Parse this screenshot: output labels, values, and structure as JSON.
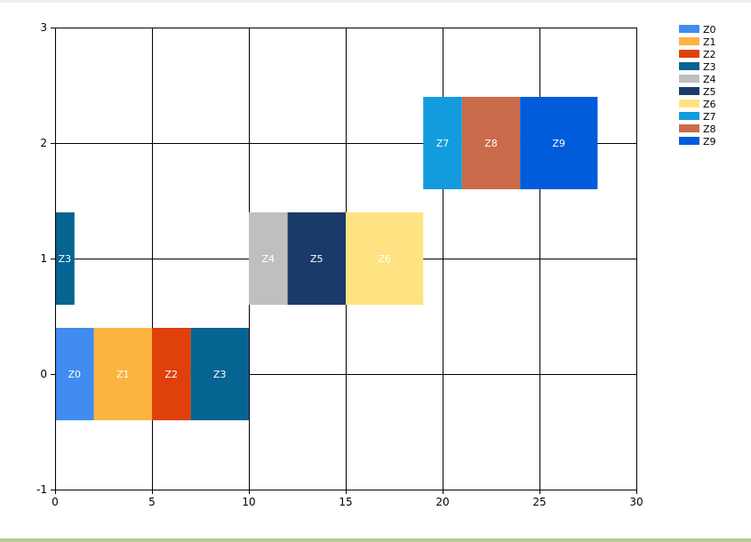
{
  "chart_data": {
    "type": "bar",
    "orientation": "horizontal-floating",
    "xlim": [
      0,
      30
    ],
    "ylim": [
      -1,
      3
    ],
    "x_ticks": [
      0,
      5,
      10,
      15,
      20,
      25,
      30
    ],
    "y_ticks": [
      -1,
      0,
      1,
      2,
      3
    ],
    "grid": true,
    "legend_position": "top-right",
    "bar_height": 0.8,
    "series": [
      {
        "name": "Z0",
        "color": "#418CF0",
        "segments": [
          {
            "y": 0,
            "start": 0,
            "end": 2
          }
        ]
      },
      {
        "name": "Z1",
        "color": "#FCB441",
        "segments": [
          {
            "y": 0,
            "start": 2,
            "end": 5
          }
        ]
      },
      {
        "name": "Z2",
        "color": "#E0400A",
        "segments": [
          {
            "y": 0,
            "start": 5,
            "end": 7
          }
        ]
      },
      {
        "name": "Z3",
        "color": "#056492",
        "segments": [
          {
            "y": 0,
            "start": 7,
            "end": 10
          },
          {
            "y": 1,
            "start": 0,
            "end": 1
          }
        ]
      },
      {
        "name": "Z4",
        "color": "#BFBFBF",
        "segments": [
          {
            "y": 1,
            "start": 10,
            "end": 12
          }
        ]
      },
      {
        "name": "Z5",
        "color": "#1A3B69",
        "segments": [
          {
            "y": 1,
            "start": 12,
            "end": 15
          }
        ]
      },
      {
        "name": "Z6",
        "color": "#FFE382",
        "segments": [
          {
            "y": 1,
            "start": 15,
            "end": 19
          }
        ]
      },
      {
        "name": "Z7",
        "color": "#129CDD",
        "segments": [
          {
            "y": 2,
            "start": 19,
            "end": 21
          }
        ]
      },
      {
        "name": "Z8",
        "color": "#CA6B4B",
        "segments": [
          {
            "y": 2,
            "start": 21,
            "end": 24
          }
        ]
      },
      {
        "name": "Z9",
        "color": "#005CDB",
        "segments": [
          {
            "y": 2,
            "start": 24,
            "end": 28
          }
        ]
      }
    ]
  }
}
